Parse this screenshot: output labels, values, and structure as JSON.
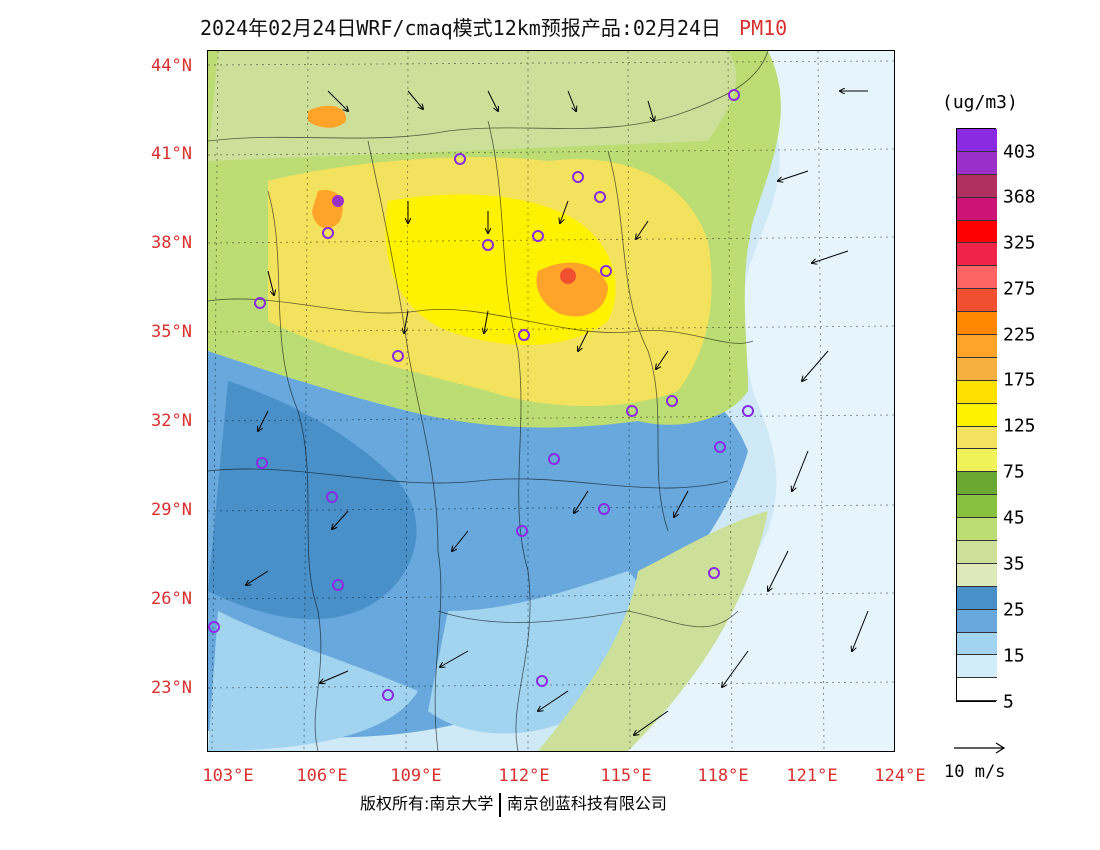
{
  "title": {
    "main": "2024年02月24日WRF/cmaq模式12km预报产品:02月24日",
    "species": "PM10",
    "species_color": "#d8302f"
  },
  "axes": {
    "lat_labels": [
      "44°N",
      "41°N",
      "38°N",
      "35°N",
      "32°N",
      "29°N",
      "26°N",
      "23°N"
    ],
    "lon_labels": [
      "103°E",
      "106°E",
      "109°E",
      "112°E",
      "115°E",
      "118°E",
      "121°E",
      "124°E"
    ],
    "label_color": "#d8302f"
  },
  "colorbar": {
    "unit": "(ug/m3)",
    "colors_top_to_bottom": [
      "#8a2be2",
      "#9b30c8",
      "#b03060",
      "#cc1477",
      "#ff0000",
      "#f0244a",
      "#ff6464",
      "#f05030",
      "#ff8800",
      "#ffa428",
      "#f5b040",
      "#ffe000",
      "#fff200",
      "#f2e25e",
      "#f0f25a",
      "#6aa832",
      "#88c040",
      "#bcdc74",
      "#cce09a",
      "#dde9bb",
      "#4a90c8",
      "#68a8dc",
      "#a2d4f0",
      "#d2ecfa",
      "#ffffff"
    ],
    "labels": [
      "403",
      "368",
      "325",
      "275",
      "225",
      "175",
      "125",
      "75",
      "45",
      "35",
      "25",
      "15",
      "5"
    ]
  },
  "wind": {
    "reference_label": "10 m/s"
  },
  "credit": {
    "left": "版权所有:南京大学",
    "right": "南京创蓝科技有限公司"
  }
}
